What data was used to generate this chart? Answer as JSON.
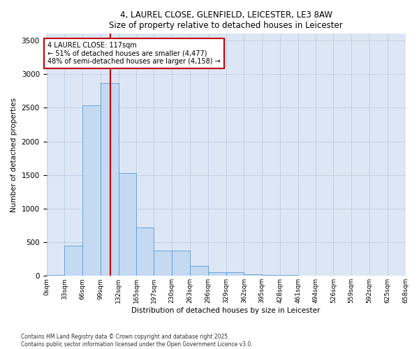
{
  "title_line1": "4, LAUREL CLOSE, GLENFIELD, LEICESTER, LE3 8AW",
  "title_line2": "Size of property relative to detached houses in Leicester",
  "xlabel": "Distribution of detached houses by size in Leicester",
  "ylabel": "Number of detached properties",
  "bar_color": "#c5d9f1",
  "bar_edge_color": "#5b9bd5",
  "vline_color": "#c00000",
  "vline_x": 117,
  "annotation_title": "4 LAUREL CLOSE: 117sqm",
  "annotation_line2": "← 51% of detached houses are smaller (4,477)",
  "annotation_line3": "48% of semi-detached houses are larger (4,158) →",
  "annotation_box_color": "#ffffff",
  "annotation_box_edgecolor": "#c00000",
  "bin_edges": [
    0,
    33,
    66,
    99,
    132,
    165,
    197,
    230,
    263,
    296,
    329,
    362,
    395,
    428,
    461,
    494,
    526,
    559,
    592,
    625,
    658
  ],
  "bin_labels": [
    "0sqm",
    "33sqm",
    "66sqm",
    "99sqm",
    "132sqm",
    "165sqm",
    "197sqm",
    "230sqm",
    "263sqm",
    "296sqm",
    "329sqm",
    "362sqm",
    "395sqm",
    "428sqm",
    "461sqm",
    "494sqm",
    "526sqm",
    "559sqm",
    "592sqm",
    "625sqm",
    "658sqm"
  ],
  "counts": [
    10,
    450,
    2530,
    2870,
    1530,
    720,
    380,
    380,
    145,
    60,
    50,
    20,
    15,
    10,
    5,
    5,
    2,
    2,
    1,
    0
  ],
  "ylim": [
    0,
    3600
  ],
  "yticks": [
    0,
    500,
    1000,
    1500,
    2000,
    2500,
    3000,
    3500
  ],
  "footnote_line1": "Contains HM Land Registry data © Crown copyright and database right 2025.",
  "footnote_line2": "Contains public sector information licensed under the Open Government Licence v3.0.",
  "background_color": "#ffffff",
  "plot_bg_color": "#dce6f5",
  "grid_color": "#b8c8e0"
}
